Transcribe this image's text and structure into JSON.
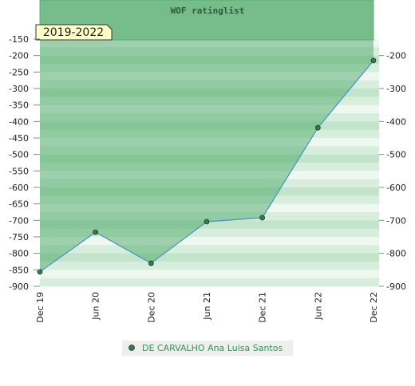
{
  "chart_data": {
    "type": "line",
    "title": "WOF ratinglist",
    "annotation": "2019-2022",
    "categories": [
      "Dec 19",
      "Jun 20",
      "Dec 20",
      "Jun 21",
      "Dec 21",
      "Jun 22",
      "Dec 22"
    ],
    "series": [
      {
        "name": "DE CARVALHO Ana Luisa Santos",
        "color": "#2e7d4f",
        "line_color": "#4a90c8",
        "values": [
          -856,
          -736,
          -830,
          -704,
          -692,
          -419,
          -215
        ]
      }
    ],
    "ylim": [
      -900,
      -150
    ],
    "yticks": [
      -150,
      -200,
      -250,
      -300,
      -350,
      -400,
      -450,
      -500,
      -550,
      -600,
      -650,
      -700,
      -750,
      -800,
      -850,
      -900
    ],
    "y2lim": [
      -900,
      -150
    ],
    "y2ticks": [
      -200,
      -300,
      -400,
      -500,
      -600,
      -700,
      -800,
      -900
    ]
  }
}
